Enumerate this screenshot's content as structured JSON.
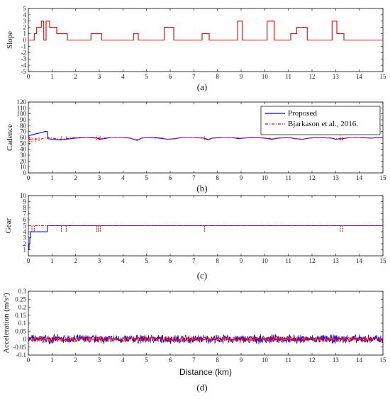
{
  "chart_data": [
    {
      "type": "line",
      "caption": "(a)",
      "ylabel": "Slope",
      "xlabel": "",
      "xlim": [
        0,
        15
      ],
      "ylim": [
        -5,
        5
      ],
      "x_ticks": [
        0,
        1,
        2,
        3,
        4,
        5,
        6,
        7,
        8,
        9,
        10,
        11,
        12,
        13,
        14,
        15
      ],
      "y_ticks": [
        -5,
        -4,
        -3,
        -2,
        -1,
        0,
        1,
        2,
        3,
        4,
        5
      ],
      "grid": false,
      "series": [
        {
          "color": "#e00000",
          "style": "step",
          "points": [
            [
              0,
              0
            ],
            [
              0.25,
              0
            ],
            [
              0.25,
              1
            ],
            [
              0.35,
              1
            ],
            [
              0.35,
              2
            ],
            [
              0.55,
              2
            ],
            [
              0.55,
              3
            ],
            [
              0.65,
              3
            ],
            [
              0.65,
              0
            ],
            [
              0.75,
              0
            ],
            [
              0.75,
              3
            ],
            [
              0.9,
              3
            ],
            [
              0.9,
              2
            ],
            [
              1.2,
              2
            ],
            [
              1.2,
              1
            ],
            [
              1.65,
              1
            ],
            [
              1.65,
              0
            ],
            [
              2.65,
              0
            ],
            [
              2.65,
              1
            ],
            [
              3.1,
              1
            ],
            [
              3.1,
              0
            ],
            [
              4.45,
              0
            ],
            [
              4.45,
              1
            ],
            [
              4.65,
              1
            ],
            [
              4.65,
              0
            ],
            [
              5.75,
              0
            ],
            [
              5.75,
              2
            ],
            [
              6.15,
              2
            ],
            [
              6.15,
              0
            ],
            [
              7.35,
              0
            ],
            [
              7.35,
              1
            ],
            [
              7.65,
              1
            ],
            [
              7.65,
              0
            ],
            [
              8.85,
              0
            ],
            [
              8.85,
              3
            ],
            [
              9.05,
              3
            ],
            [
              9.05,
              0
            ],
            [
              10.1,
              0
            ],
            [
              10.1,
              3
            ],
            [
              10.4,
              3
            ],
            [
              10.4,
              0
            ],
            [
              11.1,
              0
            ],
            [
              11.1,
              1
            ],
            [
              11.35,
              1
            ],
            [
              11.35,
              2
            ],
            [
              11.8,
              2
            ],
            [
              11.8,
              0
            ],
            [
              12.85,
              0
            ],
            [
              12.85,
              3
            ],
            [
              13.05,
              3
            ],
            [
              13.05,
              1
            ],
            [
              13.35,
              1
            ],
            [
              13.35,
              0
            ],
            [
              15,
              0
            ]
          ]
        }
      ]
    },
    {
      "type": "line",
      "caption": "(b)",
      "ylabel": "Cadence",
      "xlabel": "",
      "xlim": [
        0,
        15
      ],
      "ylim": [
        0,
        120
      ],
      "x_ticks": [
        0,
        1,
        2,
        3,
        4,
        5,
        6,
        7,
        8,
        9,
        10,
        11,
        12,
        13,
        14,
        15
      ],
      "y_ticks": [
        0,
        10,
        20,
        30,
        40,
        50,
        60,
        70,
        80,
        90,
        100,
        110,
        120
      ],
      "grid": false,
      "legend_position": "top-right",
      "series": [
        {
          "name": "Proposed",
          "color": "#0000ff",
          "style": "solid",
          "points": [
            [
              0,
              62
            ],
            [
              0.1,
              64
            ],
            [
              0.2,
              65
            ],
            [
              0.3,
              66
            ],
            [
              0.4,
              67
            ],
            [
              0.5,
              68
            ],
            [
              0.6,
              69
            ],
            [
              0.7,
              70
            ],
            [
              0.8,
              70
            ],
            [
              0.82,
              58
            ],
            [
              1.0,
              57
            ],
            [
              1.3,
              56
            ],
            [
              1.6,
              57
            ],
            [
              2.0,
              59
            ],
            [
              2.5,
              60
            ],
            [
              2.9,
              59
            ],
            [
              3.0,
              57
            ],
            [
              3.2,
              58
            ],
            [
              3.5,
              60
            ],
            [
              4.0,
              60
            ],
            [
              4.3,
              59
            ],
            [
              4.6,
              55
            ],
            [
              4.8,
              59
            ],
            [
              5.0,
              60
            ],
            [
              5.5,
              59
            ],
            [
              5.9,
              57
            ],
            [
              6.2,
              58
            ],
            [
              6.5,
              60
            ],
            [
              7.0,
              60
            ],
            [
              7.4,
              59
            ],
            [
              7.6,
              56
            ],
            [
              7.8,
              59
            ],
            [
              8.2,
              60
            ],
            [
              8.6,
              60
            ],
            [
              8.9,
              58
            ],
            [
              9.1,
              59
            ],
            [
              9.5,
              60
            ],
            [
              10.0,
              59
            ],
            [
              10.3,
              57
            ],
            [
              10.6,
              59
            ],
            [
              11.0,
              60
            ],
            [
              11.3,
              58
            ],
            [
              11.6,
              57
            ],
            [
              11.9,
              59
            ],
            [
              12.3,
              60
            ],
            [
              12.8,
              59
            ],
            [
              13.0,
              57
            ],
            [
              13.3,
              58
            ],
            [
              13.6,
              60
            ],
            [
              14.0,
              60
            ],
            [
              14.5,
              59
            ],
            [
              15,
              60
            ]
          ]
        },
        {
          "name": "Bjarkason et al., 2016.",
          "color": "#e00000",
          "style": "dashdot",
          "points": [
            [
              0,
              58
            ],
            [
              0.1,
              57
            ],
            [
              0.2,
              58
            ],
            [
              0.3,
              57
            ],
            [
              0.4,
              58
            ],
            [
              0.5,
              57
            ],
            [
              0.6,
              58
            ],
            [
              0.7,
              59
            ],
            [
              0.8,
              60
            ],
            [
              1.0,
              59
            ],
            [
              1.3,
              57
            ],
            [
              1.6,
              58
            ],
            [
              2.0,
              60
            ],
            [
              2.5,
              60
            ],
            [
              2.9,
              60
            ],
            [
              3.0,
              58
            ],
            [
              3.2,
              59
            ],
            [
              3.5,
              60
            ],
            [
              4.0,
              60
            ],
            [
              4.3,
              59
            ],
            [
              4.6,
              56
            ],
            [
              4.8,
              59
            ],
            [
              5.0,
              60
            ],
            [
              5.5,
              60
            ],
            [
              5.9,
              57
            ],
            [
              6.2,
              58
            ],
            [
              6.5,
              60
            ],
            [
              7.0,
              60
            ],
            [
              7.4,
              59
            ],
            [
              7.6,
              57
            ],
            [
              7.8,
              59
            ],
            [
              8.2,
              60
            ],
            [
              8.6,
              60
            ],
            [
              8.9,
              59
            ],
            [
              9.1,
              59
            ],
            [
              9.5,
              60
            ],
            [
              10.0,
              59
            ],
            [
              10.3,
              58
            ],
            [
              10.6,
              59
            ],
            [
              11.0,
              60
            ],
            [
              11.3,
              58
            ],
            [
              11.6,
              57
            ],
            [
              11.9,
              59
            ],
            [
              12.3,
              60
            ],
            [
              12.8,
              59
            ],
            [
              13.0,
              58
            ],
            [
              13.3,
              58
            ],
            [
              13.6,
              60
            ],
            [
              14.0,
              60
            ],
            [
              14.5,
              59
            ],
            [
              15,
              60
            ]
          ]
        }
      ],
      "spikes": [
        {
          "x": 0.05,
          "y1": 48,
          "y2": 62
        },
        {
          "x": 0.15,
          "y1": 52,
          "y2": 60
        },
        {
          "x": 0.3,
          "y1": 53,
          "y2": 59
        },
        {
          "x": 0.45,
          "y1": 54,
          "y2": 60
        },
        {
          "x": 1.4,
          "y1": 56,
          "y2": 63
        },
        {
          "x": 1.6,
          "y1": 56,
          "y2": 62
        },
        {
          "x": 2.9,
          "y1": 55,
          "y2": 63
        },
        {
          "x": 3.0,
          "y1": 55,
          "y2": 63
        },
        {
          "x": 3.05,
          "y1": 56,
          "y2": 62
        },
        {
          "x": 7.45,
          "y1": 56,
          "y2": 63
        },
        {
          "x": 13.2,
          "y1": 55,
          "y2": 63
        },
        {
          "x": 13.3,
          "y1": 55,
          "y2": 62
        }
      ]
    },
    {
      "type": "line",
      "caption": "(c)",
      "ylabel": "Gear",
      "xlabel": "",
      "xlim": [
        0,
        15
      ],
      "ylim": [
        0,
        10
      ],
      "x_ticks": [
        0,
        1,
        2,
        3,
        4,
        5,
        6,
        7,
        8,
        9,
        10,
        11,
        12,
        13,
        14,
        15
      ],
      "y_ticks": [
        1,
        2,
        3,
        4,
        5,
        6,
        7,
        8,
        9,
        10
      ],
      "grid": false,
      "series": [
        {
          "name": "Proposed",
          "color": "#0000ff",
          "style": "step",
          "points": [
            [
              0,
              1
            ],
            [
              0.03,
              1
            ],
            [
              0.03,
              2
            ],
            [
              0.06,
              2
            ],
            [
              0.06,
              3
            ],
            [
              0.1,
              3
            ],
            [
              0.1,
              4
            ],
            [
              0.8,
              4
            ],
            [
              0.8,
              5
            ],
            [
              15,
              5
            ]
          ]
        },
        {
          "name": "Bjarkason et al., 2016.",
          "color": "#e00000",
          "style": "dashdot",
          "points": [
            [
              0,
              5
            ],
            [
              15,
              5
            ]
          ]
        }
      ],
      "spikes": [
        {
          "x": 0.15,
          "y1": 4,
          "y2": 5
        },
        {
          "x": 0.25,
          "y1": 4,
          "y2": 5
        },
        {
          "x": 1.4,
          "y1": 4,
          "y2": 5
        },
        {
          "x": 1.6,
          "y1": 4,
          "y2": 5
        },
        {
          "x": 2.9,
          "y1": 4,
          "y2": 5
        },
        {
          "x": 2.95,
          "y1": 4,
          "y2": 5
        },
        {
          "x": 3.05,
          "y1": 4,
          "y2": 5
        },
        {
          "x": 7.45,
          "y1": 4,
          "y2": 5
        },
        {
          "x": 13.2,
          "y1": 4,
          "y2": 5
        },
        {
          "x": 13.3,
          "y1": 4,
          "y2": 5
        }
      ]
    },
    {
      "type": "line",
      "caption": "(d)",
      "ylabel": "Acceleration (m/s²)",
      "xlabel": "Distance (km)",
      "xlim": [
        0,
        15
      ],
      "ylim": [
        -0.1,
        0.3
      ],
      "x_ticks": [
        0,
        1,
        2,
        3,
        4,
        5,
        6,
        7,
        8,
        9,
        10,
        11,
        12,
        13,
        14,
        15
      ],
      "y_ticks": [
        -0.1,
        -0.05,
        0,
        0.05,
        0.1,
        0.15,
        0.2,
        0.25,
        0.3
      ],
      "y_tick_labels": [
        "-0.1",
        "-0.05",
        "0",
        "0.05",
        "0.1",
        "0.15",
        "0.2",
        "0.25",
        "0.3"
      ],
      "grid": false,
      "noise_series": [
        {
          "name": "Proposed",
          "color": "#0000ff",
          "center": 0,
          "amplitude": 0.03
        },
        {
          "name": "Bjarkason et al., 2016.",
          "color": "#e00000",
          "center": 0,
          "amplitude": 0.02
        }
      ]
    }
  ]
}
